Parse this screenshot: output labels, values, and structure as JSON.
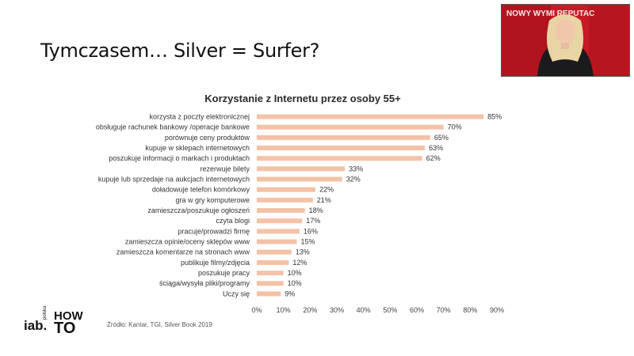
{
  "slide": {
    "title": "Tymczasem… Silver = Surfer?",
    "source": "Źródło: Kantar, TGI, Silver Book 2019"
  },
  "video": {
    "banner_text": "NOWY WYMI REPUTAC"
  },
  "logo": {
    "brand": "iab.",
    "sub": "polska",
    "how": "HOW",
    "to": "TO"
  },
  "colors": {
    "bar": "#f4c2a6",
    "video_bg": "#d01825"
  },
  "chart_data": {
    "type": "bar",
    "orientation": "horizontal",
    "title": "Korzystanie z Internetu przez osoby 55+",
    "xlabel": "",
    "ylabel": "",
    "xlim": [
      0,
      90
    ],
    "x_ticks": [
      "0%",
      "10%",
      "20%",
      "30%",
      "40%",
      "50%",
      "60%",
      "70%",
      "80%",
      "90%"
    ],
    "grid": false,
    "legend": "none",
    "categories": [
      "korzysta z poczty elektronicznej",
      "obsługuje rachunek bankowy /operacje bankowe",
      "porównuje ceny produktów",
      "kupuje w sklepach internetowych",
      "poszukuje informacji o markach i produktach",
      "rezerwuje bilety",
      "kupuje lub sprzedaje na aukcjach internetowych",
      "doładowuje telefon komórkowy",
      "gra w gry komputerowe",
      "zamieszcza/poszukuje ogłoszeń",
      "czyta blogi",
      "pracuje/prowadzi firmę",
      "zamieszcza opinie/oceny sklepów www",
      "zamieszcza komentarze na stronach www",
      "publikuje filmy/zdjęcia",
      "poszukuje pracy",
      "ściąga/wysyła pliki/programy",
      "Uczy się"
    ],
    "values": [
      85,
      70,
      65,
      63,
      62,
      33,
      32,
      22,
      21,
      18,
      17,
      16,
      15,
      13,
      12,
      10,
      10,
      9
    ],
    "value_labels": [
      "85%",
      "70%",
      "65%",
      "63%",
      "62%",
      "33%",
      "32%",
      "22%",
      "21%",
      "18%",
      "17%",
      "16%",
      "15%",
      "13%",
      "12%",
      "10%",
      "10%",
      "9%"
    ]
  }
}
